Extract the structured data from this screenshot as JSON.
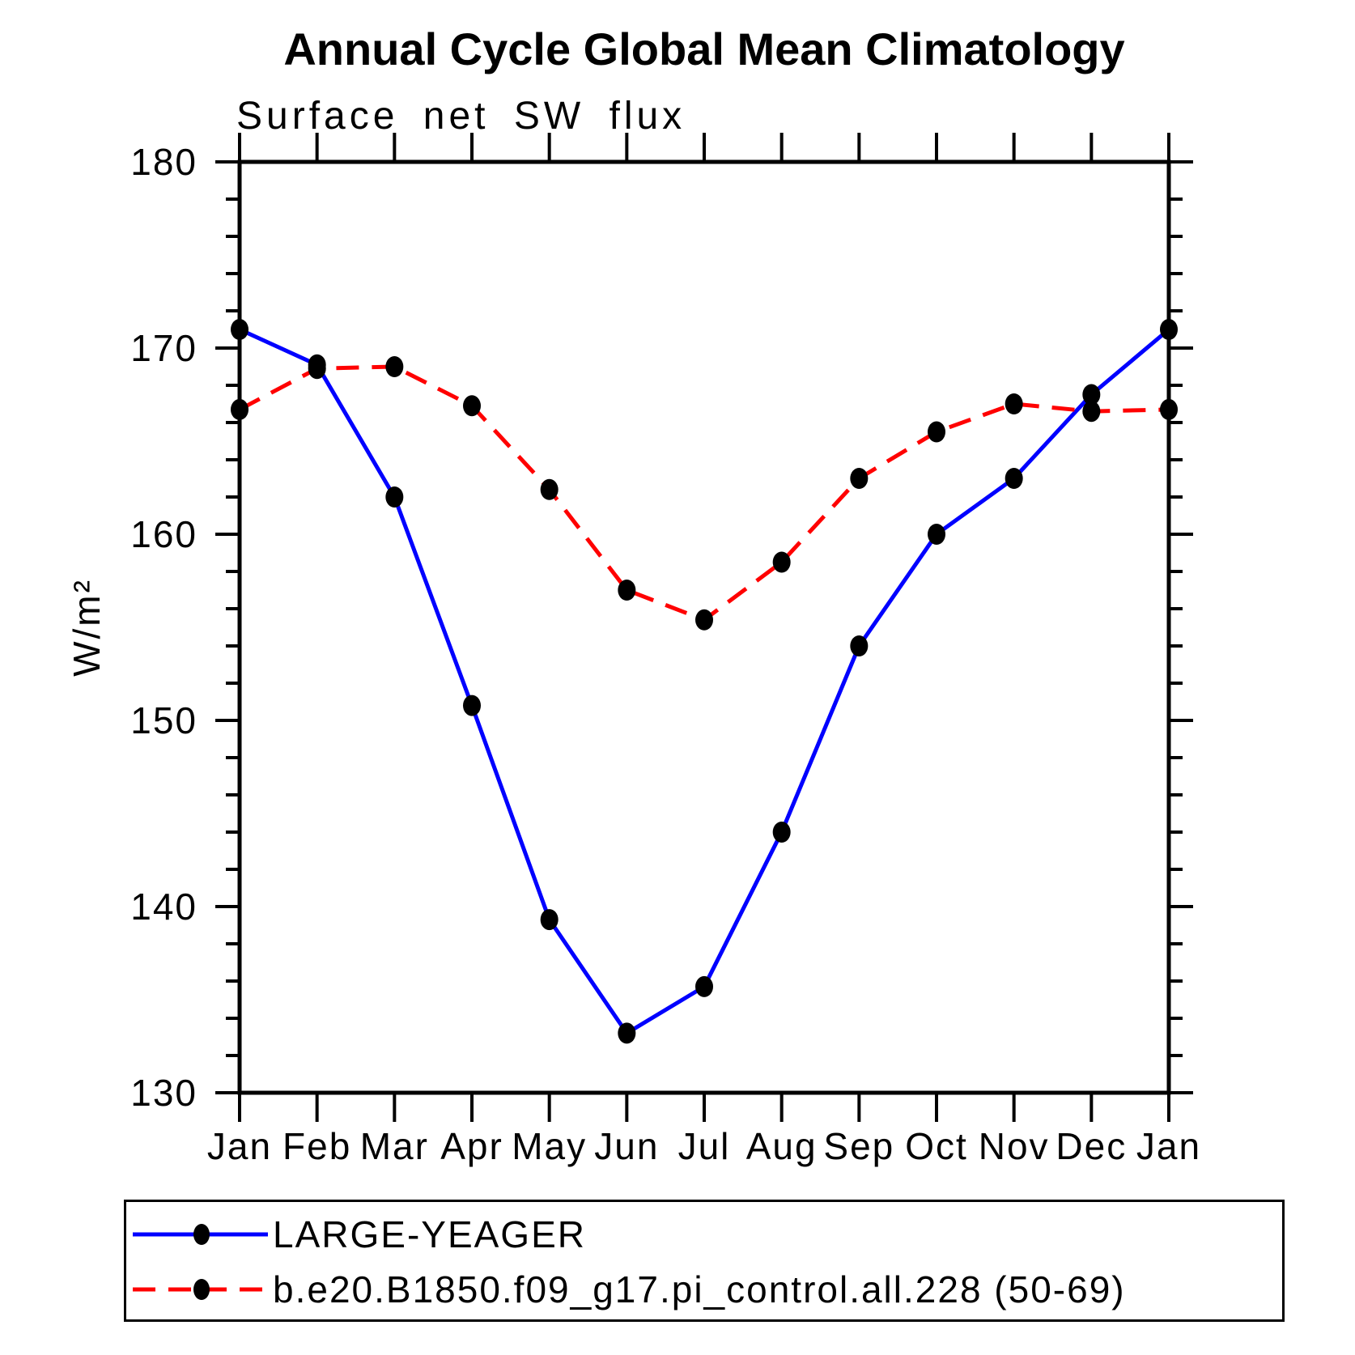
{
  "chart_data": {
    "type": "line",
    "title": "Annual Cycle Global Mean Climatology",
    "subtitle": "Surface net SW flux",
    "ylabel": "W/m²",
    "categories": [
      "Jan",
      "Feb",
      "Mar",
      "Apr",
      "May",
      "Jun",
      "Jul",
      "Aug",
      "Sep",
      "Oct",
      "Nov",
      "Dec",
      "Jan"
    ],
    "ylim": [
      130,
      180
    ],
    "y_major_ticks": [
      130,
      140,
      150,
      160,
      170,
      180
    ],
    "y_minor_tick_step": 2,
    "grid": false,
    "legend_position": "bottom-left-box",
    "marker": "filled-ellipse",
    "marker_color": "#000000",
    "axis_color": "#000000",
    "series": [
      {
        "name": "LARGE-YEAGER",
        "color": "#0000ff",
        "line_style": "solid",
        "values": [
          171.0,
          169.1,
          162.0,
          150.8,
          139.3,
          133.2,
          135.7,
          144.0,
          154.0,
          160.0,
          163.0,
          167.5,
          171.0
        ]
      },
      {
        "name": "b.e20.B1850.f09_g17.pi_control.all.228 (50-69)",
        "color": "#ff0000",
        "line_style": "dashed",
        "values": [
          166.7,
          168.9,
          169.0,
          166.9,
          162.4,
          157.0,
          155.4,
          158.5,
          163.0,
          165.5,
          167.0,
          166.6,
          166.7
        ]
      }
    ]
  }
}
